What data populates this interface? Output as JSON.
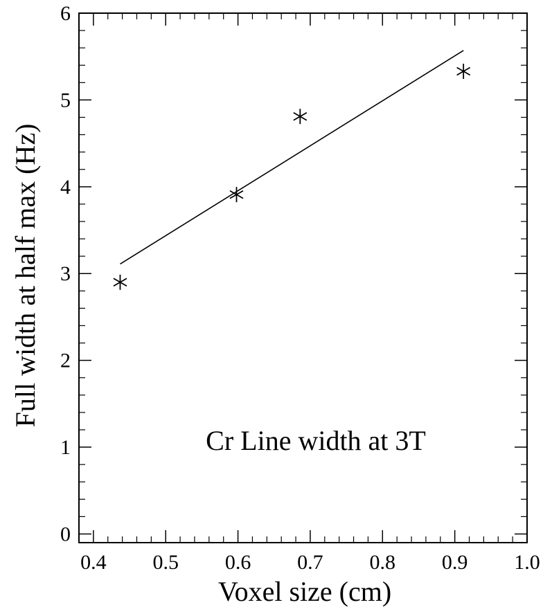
{
  "chart_data": {
    "type": "scatter",
    "title": "",
    "annotation": "Cr Line width at 3T",
    "xlabel": "Voxel size (cm)",
    "ylabel": "Full width at half max (Hz)",
    "xlim": [
      0.38,
      1.0
    ],
    "ylim": [
      -0.1,
      6.0
    ],
    "x_ticks": [
      0.4,
      0.5,
      0.6,
      0.7,
      0.8,
      0.9,
      1.0
    ],
    "x_tick_labels": [
      "0.4",
      "0.5",
      "0.6",
      "0.7",
      "0.8",
      "0.9",
      "1.0"
    ],
    "y_ticks": [
      0,
      1,
      2,
      3,
      4,
      5,
      6
    ],
    "y_tick_labels": [
      "0",
      "1",
      "2",
      "3",
      "4",
      "5",
      "6"
    ],
    "x_minor_step": 0.02,
    "y_minor_step": 0.2,
    "grid": false,
    "marker": "asterisk",
    "points": [
      {
        "x": 0.437,
        "y": 2.9
      },
      {
        "x": 0.598,
        "y": 3.91
      },
      {
        "x": 0.686,
        "y": 4.81
      },
      {
        "x": 0.912,
        "y": 5.33
      }
    ],
    "fit_line": {
      "x": [
        0.437,
        0.912
      ],
      "y": [
        3.11,
        5.57
      ]
    },
    "colors": {
      "ink": "#000000",
      "background": "#ffffff"
    }
  }
}
